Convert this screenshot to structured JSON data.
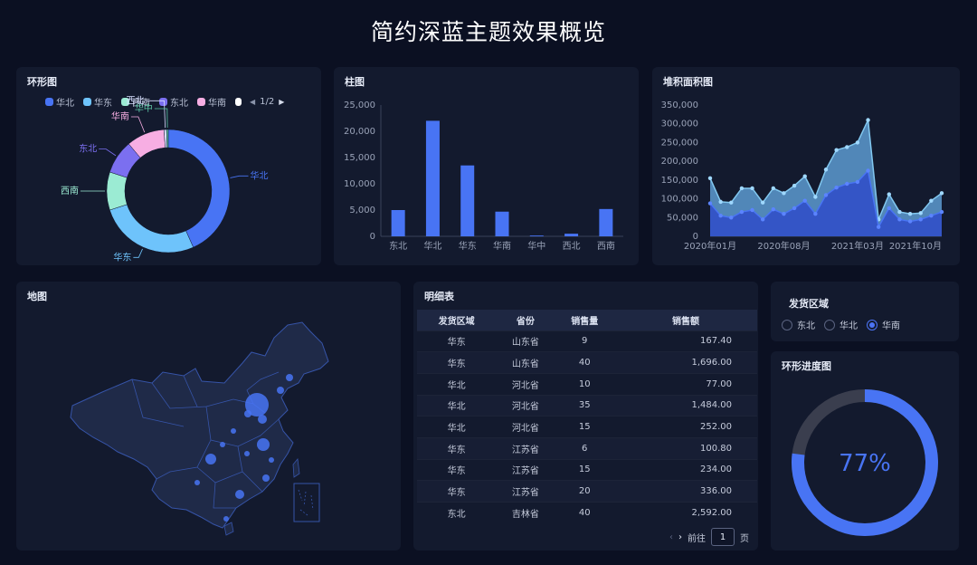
{
  "page_title": "简约深蓝主题效果概览",
  "donut": {
    "title": "环形图",
    "legend": [
      {
        "label": "华北",
        "color": "#4874f4"
      },
      {
        "label": "华东",
        "color": "#6ec3fb"
      },
      {
        "label": "西南",
        "color": "#9bebd3"
      },
      {
        "label": "东北",
        "color": "#7b6ff0"
      },
      {
        "label": "华南",
        "color": "#f7aee3"
      },
      {
        "label": "",
        "color": "#ffffff"
      }
    ],
    "pager_text": "1/2",
    "chart_data": {
      "type": "pie",
      "categories": [
        "华北",
        "华东",
        "西南",
        "东北",
        "华南",
        "西北",
        "华中"
      ],
      "values": [
        39,
        24,
        9,
        8,
        9,
        0.6,
        0.4
      ],
      "colors": [
        "#4874f4",
        "#6ec3fb",
        "#9bebd3",
        "#7b6ff0",
        "#f7aee3",
        "#d7dfff",
        "#5ec7a7"
      ]
    }
  },
  "bar": {
    "title": "柱图",
    "chart_data": {
      "type": "bar",
      "categories": [
        "东北",
        "华北",
        "华东",
        "华南",
        "华中",
        "西北",
        "西南"
      ],
      "values": [
        5000,
        22000,
        13500,
        4700,
        150,
        500,
        5200
      ],
      "yticks": [
        "0",
        "5,000",
        "10,000",
        "15,000",
        "20,000",
        "25,000"
      ],
      "ylim": [
        0,
        25000
      ],
      "color": "#4874f4"
    }
  },
  "area": {
    "title": "堆积面积图",
    "chart_data": {
      "type": "area",
      "xticks": [
        "2020年01月",
        "2020年08月",
        "2021年03月",
        "2021年10月"
      ],
      "yticks": [
        "0",
        "50,000",
        "100,000",
        "150,000",
        "200,000",
        "250,000",
        "300,000",
        "350,000"
      ],
      "ylim": [
        0,
        350000
      ],
      "series": [
        {
          "values": [
            88000,
            55000,
            50000,
            65000,
            70000,
            45000,
            72000,
            60000,
            75000,
            95000,
            60000,
            110000,
            130000,
            140000,
            145000,
            175000,
            25000,
            75000,
            45000,
            40000,
            45000,
            55000,
            65000
          ],
          "color": "#3352c6"
        },
        {
          "values": [
            155000,
            92000,
            90000,
            128000,
            128000,
            90000,
            128000,
            115000,
            135000,
            160000,
            105000,
            178000,
            230000,
            238000,
            250000,
            310000,
            45000,
            112000,
            65000,
            60000,
            62000,
            95000,
            115000
          ],
          "color": "#5d9bd0"
        }
      ]
    }
  },
  "map": {
    "title": "地图"
  },
  "detail_table": {
    "title": "明细表",
    "headers": [
      "发货区域",
      "省份",
      "销售量",
      "销售额"
    ],
    "rows": [
      [
        "华东",
        "山东省",
        "9",
        "167.40"
      ],
      [
        "华东",
        "山东省",
        "40",
        "1,696.00"
      ],
      [
        "华北",
        "河北省",
        "10",
        "77.00"
      ],
      [
        "华北",
        "河北省",
        "35",
        "1,484.00"
      ],
      [
        "华北",
        "河北省",
        "15",
        "252.00"
      ],
      [
        "华东",
        "江苏省",
        "6",
        "100.80"
      ],
      [
        "华东",
        "江苏省",
        "15",
        "234.00"
      ],
      [
        "华东",
        "江苏省",
        "20",
        "336.00"
      ],
      [
        "东北",
        "吉林省",
        "40",
        "2,592.00"
      ]
    ],
    "pager": {
      "goto_label": "前往",
      "page_value": "1",
      "page_suffix": "页"
    }
  },
  "region_filter": {
    "title": "发货区域",
    "options": [
      {
        "label": "东北",
        "checked": false
      },
      {
        "label": "华北",
        "checked": false
      },
      {
        "label": "华南",
        "checked": true
      }
    ]
  },
  "progress": {
    "title": "环形进度图",
    "value_text": "77%",
    "value": 0.77,
    "color": "#4874f4",
    "track_color": "#3a3e4e"
  }
}
